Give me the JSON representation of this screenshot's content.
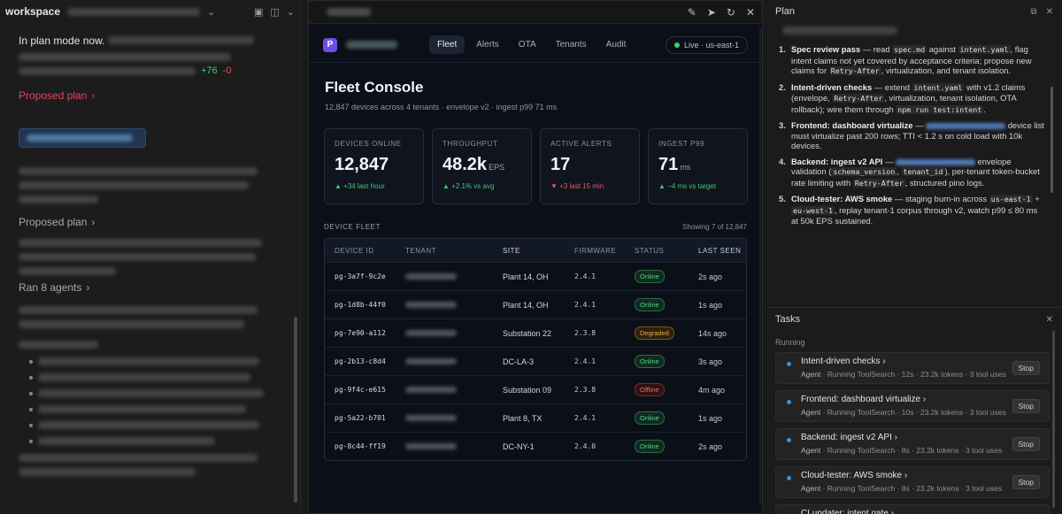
{
  "left": {
    "workspace_title": "workspace",
    "plan_mode_text": "In plan mode now.",
    "diff_add": "+76",
    "diff_del": "-0",
    "proposed_plan_red": "Proposed plan",
    "proposed_plan": "Proposed plan",
    "ran_agents": "Ran 8 agents"
  },
  "center": {
    "nav": {
      "logo_letter": "P",
      "tabs": [
        "Fleet",
        "Alerts",
        "OTA",
        "Tenants",
        "Audit"
      ],
      "live_label": "Live · us-east-1"
    },
    "title": "Fleet Console",
    "subtitle": "12,847 devices across 4 tenants · envelope v2 · ingest p99 71 ms",
    "kpis": [
      {
        "label": "DEVICES ONLINE",
        "value": "12,847",
        "unit": "",
        "delta": "▲ +34 last hour",
        "dir": "up"
      },
      {
        "label": "THROUGHPUT",
        "value": "48.2k",
        "unit": "EPS",
        "delta": "▲ +2.1% vs avg",
        "dir": "up"
      },
      {
        "label": "ACTIVE ALERTS",
        "value": "17",
        "unit": "",
        "delta": "▼ +3 last 15 min",
        "dir": "down"
      },
      {
        "label": "INGEST P99",
        "value": "71",
        "unit": "ms",
        "delta": "▲ −4 ms vs target",
        "dir": "up"
      }
    ],
    "fleet_title": "DEVICE FLEET",
    "fleet_count": "Showing 7 of 12,847",
    "columns": [
      "DEVICE ID",
      "TENANT",
      "SITE",
      "FIRMWARE",
      "STATUS",
      "LAST SEEN"
    ],
    "rows": [
      {
        "id": "pg-3a7f-9c2e",
        "site": "Plant 14, OH",
        "fw": "2.4.1",
        "status": "Online",
        "kind": "online",
        "seen": "2s ago"
      },
      {
        "id": "pg-1d8b-44f0",
        "site": "Plant 14, OH",
        "fw": "2.4.1",
        "status": "Online",
        "kind": "online",
        "seen": "1s ago"
      },
      {
        "id": "pg-7e90-a112",
        "site": "Substation 22",
        "fw": "2.3.8",
        "status": "Degraded",
        "kind": "degraded",
        "seen": "14s ago"
      },
      {
        "id": "pg-2b13-c8d4",
        "site": "DC-LA-3",
        "fw": "2.4.1",
        "status": "Online",
        "kind": "online",
        "seen": "3s ago"
      },
      {
        "id": "pg-9f4c-e615",
        "site": "Substation 09",
        "fw": "2.3.8",
        "status": "Offline",
        "kind": "offline",
        "seen": "4m ago"
      },
      {
        "id": "pg-5a22-b701",
        "site": "Plant 8, TX",
        "fw": "2.4.1",
        "status": "Online",
        "kind": "online",
        "seen": "1s ago"
      },
      {
        "id": "pg-8c44-ff19",
        "site": "DC-NY-1",
        "fw": "2.4.0",
        "status": "Online",
        "kind": "online",
        "seen": "2s ago"
      }
    ]
  },
  "plan": {
    "header": "Plan",
    "items": [
      {
        "title": "Spec review pass",
        "rest_html": " — read <span class=\"code\">spec.md</span> against <span class=\"code\">intent.yaml</span>, flag intent claims not yet covered by acceptance criteria; propose new claims for <span class=\"code\">Retry-After</span>, virtualization, and tenant isolation."
      },
      {
        "title": "Intent-driven checks",
        "rest_html": " — extend <span class=\"code\">intent.yaml</span> with v1.2 claims (envelope, <span class=\"code\">Retry-After</span>, virtualization, tenant isolation, OTA rollback); wire them through <span class=\"code\">npm run test:intent</span>."
      },
      {
        "title": "Frontend: dashboard virtualize",
        "rest_html": " — <span class=\"blue-link\"></span> device list must virtualize past 200 rows; TTI &lt; 1.2 s on cold load with 10k devices."
      },
      {
        "title": "Backend: ingest v2 API",
        "rest_html": " — <span class=\"blue-link\"></span> envelope validation (<span class=\"code\">schema_version</span>, <span class=\"code\">tenant_id</span>), per-tenant token-bucket rate limiting with <span class=\"code\">Retry-After</span>, structured pino logs."
      },
      {
        "title": "Cloud-tester: AWS smoke",
        "rest_html": " — staging burn-in across <span class=\"code\">us-east-1</span> + <span class=\"code\">eu-west-1</span>, replay tenant-1 corpus through v2, watch p99 ≤ 80 ms at 50k EPS sustained."
      }
    ]
  },
  "tasks": {
    "header": "Tasks",
    "running_label": "Running",
    "stop_label": "Stop",
    "items": [
      {
        "name": "Intent-driven checks",
        "agent": "Agent",
        "meta": "· Running ToolSearch · 12s · 23.2k tokens · 3 tool uses"
      },
      {
        "name": "Frontend: dashboard virtualize",
        "agent": "Agent",
        "meta": "· Running ToolSearch · 10s · 23.2k tokens · 3 tool uses"
      },
      {
        "name": "Backend: ingest v2 API",
        "agent": "Agent",
        "meta": "· Running ToolSearch · 8s · 23.2k tokens · 3 tool uses"
      },
      {
        "name": "Cloud-tester: AWS smoke",
        "agent": "Agent",
        "meta": "· Running ToolSearch · 8s · 23.2k tokens · 3 tool uses"
      },
      {
        "name": "CI updater: intent gate",
        "agent": "",
        "meta": ""
      }
    ]
  }
}
